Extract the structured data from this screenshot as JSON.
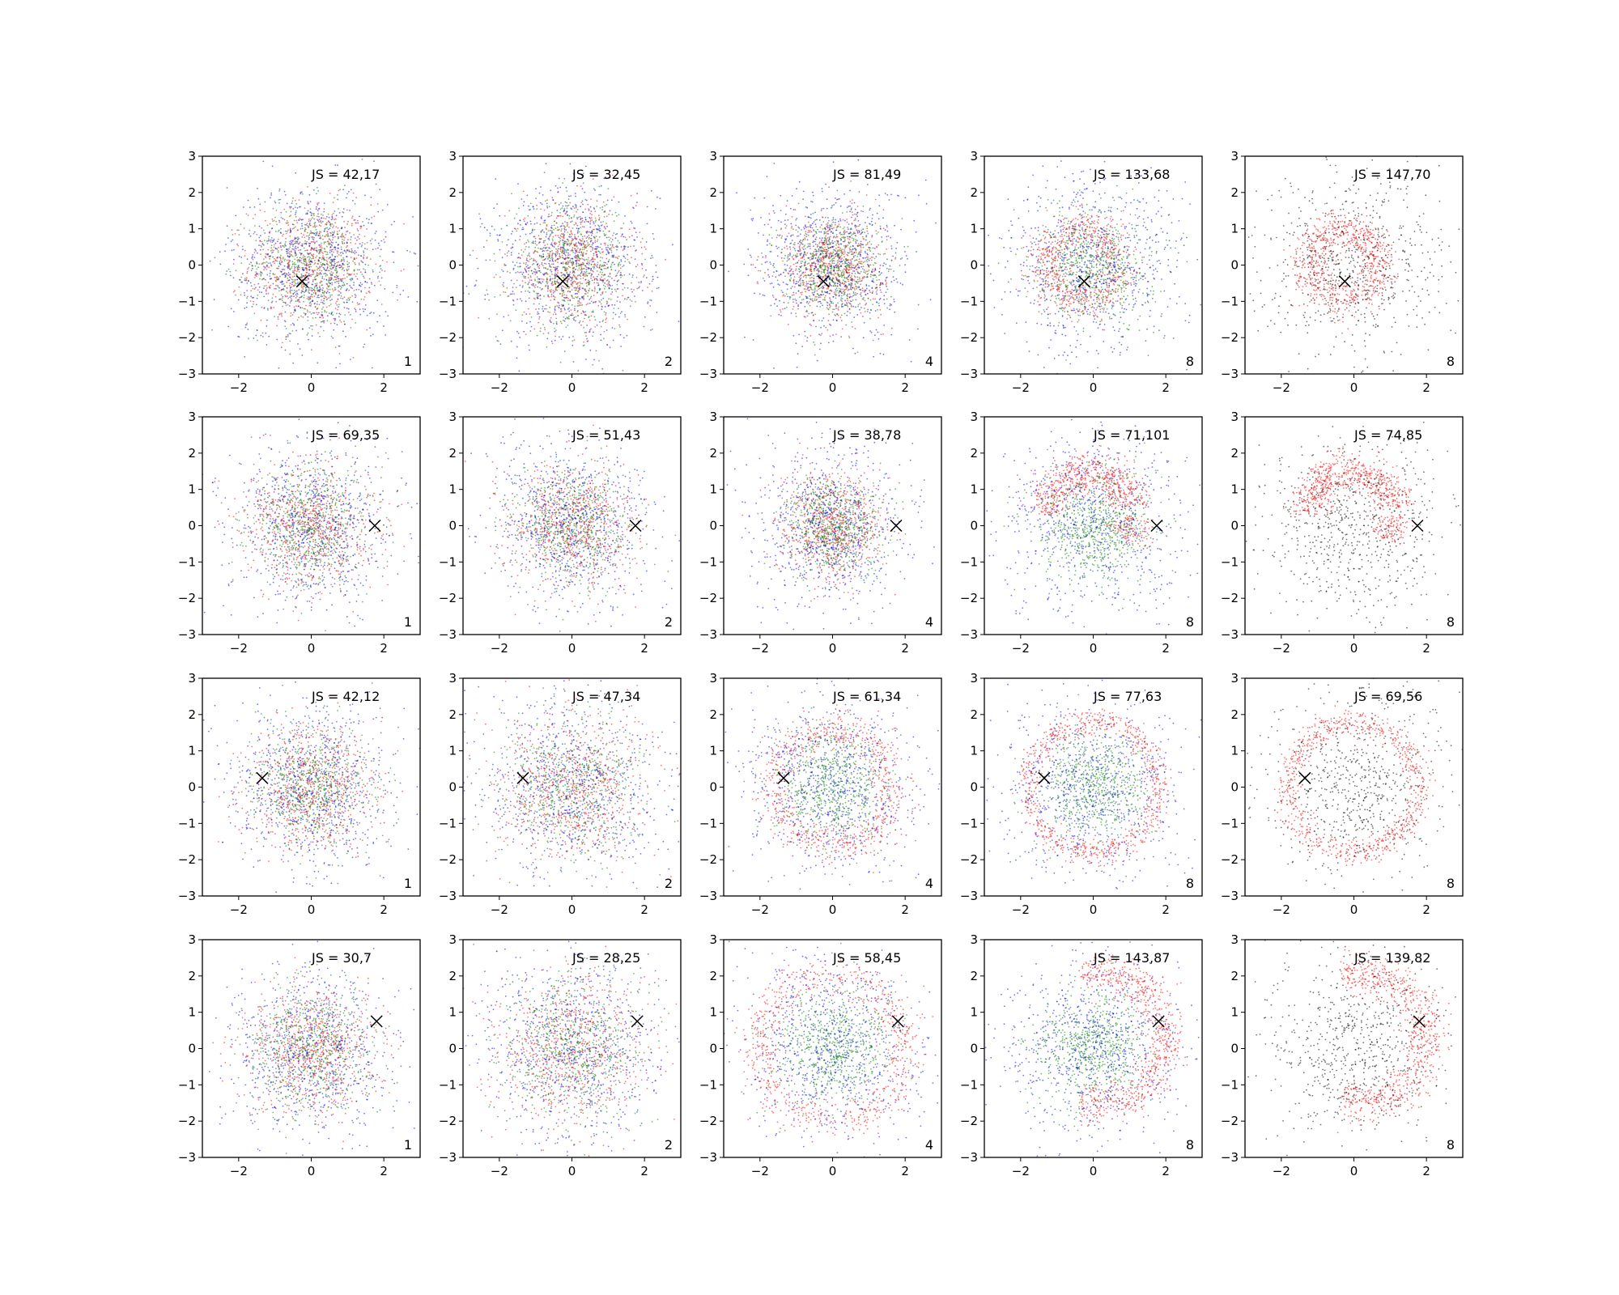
{
  "figure": {
    "rows": 4,
    "cols": 5,
    "colors": {
      "red": "#ff0000",
      "green": "#008000",
      "blue": "#0000ff",
      "black": "#000000",
      "marker": "#000000"
    }
  },
  "chart_data": [
    {
      "type": "scatter",
      "row": 0,
      "col": 0,
      "xlim": [
        -3,
        3
      ],
      "ylim": [
        -3,
        3
      ],
      "xticks": [
        -2,
        0,
        2
      ],
      "yticks": [
        -3,
        -2,
        -1,
        0,
        1,
        2,
        3
      ],
      "annotation": "JS = 42,17",
      "corner_label": "1",
      "marker": {
        "x": -0.25,
        "y": -0.45,
        "symbol": "x"
      },
      "distribution": "mixed-gaussian",
      "series_colors": [
        "red",
        "green",
        "blue"
      ]
    },
    {
      "type": "scatter",
      "row": 0,
      "col": 1,
      "xlim": [
        -3,
        3
      ],
      "ylim": [
        -3,
        3
      ],
      "xticks": [
        -2,
        0,
        2
      ],
      "yticks": [
        -3,
        -2,
        -1,
        0,
        1,
        2,
        3
      ],
      "annotation": "JS = 32,45",
      "corner_label": "2",
      "marker": {
        "x": -0.25,
        "y": -0.45,
        "symbol": "x"
      },
      "distribution": "mixed-gaussian",
      "series_colors": [
        "red",
        "green",
        "blue"
      ]
    },
    {
      "type": "scatter",
      "row": 0,
      "col": 2,
      "xlim": [
        -3,
        3
      ],
      "ylim": [
        -3,
        3
      ],
      "xticks": [
        -2,
        0,
        2
      ],
      "yticks": [
        -3,
        -2,
        -1,
        0,
        1,
        2,
        3
      ],
      "annotation": "JS = 81,49",
      "corner_label": "4",
      "marker": {
        "x": -0.25,
        "y": -0.45,
        "symbol": "x"
      },
      "distribution": "dense-core",
      "series_colors": [
        "red",
        "green",
        "blue"
      ]
    },
    {
      "type": "scatter",
      "row": 0,
      "col": 3,
      "xlim": [
        -3,
        3
      ],
      "ylim": [
        -3,
        3
      ],
      "xticks": [
        -2,
        0,
        2
      ],
      "yticks": [
        -3,
        -2,
        -1,
        0,
        1,
        2,
        3
      ],
      "annotation": "JS = 133,68",
      "corner_label": "8",
      "marker": {
        "x": -0.25,
        "y": -0.45,
        "symbol": "x"
      },
      "distribution": "ring-offset",
      "ring": {
        "cx": -0.3,
        "cy": 0,
        "r": 1.0
      },
      "series_colors": [
        "red",
        "green",
        "blue"
      ]
    },
    {
      "type": "scatter",
      "row": 0,
      "col": 4,
      "xlim": [
        -3,
        3
      ],
      "ylim": [
        -3,
        3
      ],
      "xticks": [
        -2,
        0,
        2
      ],
      "yticks": [
        -3,
        -2,
        -1,
        0,
        1,
        2,
        3
      ],
      "annotation": "JS = 147,70",
      "corner_label": "8",
      "marker": {
        "x": -0.25,
        "y": -0.45,
        "symbol": "x"
      },
      "distribution": "ring-offset",
      "ring": {
        "cx": -0.3,
        "cy": 0,
        "r": 1.0
      },
      "series_colors": [
        "red",
        "black"
      ]
    },
    {
      "type": "scatter",
      "row": 1,
      "col": 0,
      "xlim": [
        -3,
        3
      ],
      "ylim": [
        -3,
        3
      ],
      "xticks": [
        -2,
        0,
        2
      ],
      "yticks": [
        -3,
        -2,
        -1,
        0,
        1,
        2,
        3
      ],
      "annotation": "JS = 69,35",
      "corner_label": "1",
      "marker": {
        "x": 1.75,
        "y": 0.0,
        "symbol": "x"
      },
      "distribution": "mixed-gaussian",
      "series_colors": [
        "red",
        "green",
        "blue"
      ]
    },
    {
      "type": "scatter",
      "row": 1,
      "col": 1,
      "xlim": [
        -3,
        3
      ],
      "ylim": [
        -3,
        3
      ],
      "xticks": [
        -2,
        0,
        2
      ],
      "yticks": [
        -3,
        -2,
        -1,
        0,
        1,
        2,
        3
      ],
      "annotation": "JS = 51,43",
      "corner_label": "2",
      "marker": {
        "x": 1.75,
        "y": 0.0,
        "symbol": "x"
      },
      "distribution": "mixed-gaussian",
      "series_colors": [
        "red",
        "green",
        "blue"
      ]
    },
    {
      "type": "scatter",
      "row": 1,
      "col": 2,
      "xlim": [
        -3,
        3
      ],
      "ylim": [
        -3,
        3
      ],
      "xticks": [
        -2,
        0,
        2
      ],
      "yticks": [
        -3,
        -2,
        -1,
        0,
        1,
        2,
        3
      ],
      "annotation": "JS = 38,78",
      "corner_label": "4",
      "marker": {
        "x": 1.75,
        "y": 0.0,
        "symbol": "x"
      },
      "distribution": "dense-core",
      "series_colors": [
        "red",
        "green",
        "blue"
      ]
    },
    {
      "type": "scatter",
      "row": 1,
      "col": 3,
      "xlim": [
        -3,
        3
      ],
      "ylim": [
        -3,
        3
      ],
      "xticks": [
        -2,
        0,
        2
      ],
      "yticks": [
        -3,
        -2,
        -1,
        0,
        1,
        2,
        3
      ],
      "annotation": "JS = 71,101",
      "corner_label": "8",
      "marker": {
        "x": 1.75,
        "y": 0.0,
        "symbol": "x"
      },
      "distribution": "arc-top",
      "ring": {
        "cx": -0.1,
        "cy": 0.3,
        "r": 1.2
      },
      "series_colors": [
        "red",
        "green",
        "blue"
      ]
    },
    {
      "type": "scatter",
      "row": 1,
      "col": 4,
      "xlim": [
        -3,
        3
      ],
      "ylim": [
        -3,
        3
      ],
      "xticks": [
        -2,
        0,
        2
      ],
      "yticks": [
        -3,
        -2,
        -1,
        0,
        1,
        2,
        3
      ],
      "annotation": "JS = 74,85",
      "corner_label": "8",
      "marker": {
        "x": 1.75,
        "y": 0.0,
        "symbol": "x"
      },
      "distribution": "arc-top",
      "ring": {
        "cx": -0.1,
        "cy": 0.3,
        "r": 1.2
      },
      "series_colors": [
        "red",
        "black"
      ]
    },
    {
      "type": "scatter",
      "row": 2,
      "col": 0,
      "xlim": [
        -3,
        3
      ],
      "ylim": [
        -3,
        3
      ],
      "xticks": [
        -2,
        0,
        2
      ],
      "yticks": [
        -3,
        -2,
        -1,
        0,
        1,
        2,
        3
      ],
      "annotation": "JS = 42,12",
      "corner_label": "1",
      "marker": {
        "x": -1.35,
        "y": 0.25,
        "symbol": "x"
      },
      "distribution": "mixed-gaussian",
      "series_colors": [
        "red",
        "green",
        "blue"
      ]
    },
    {
      "type": "scatter",
      "row": 2,
      "col": 1,
      "xlim": [
        -3,
        3
      ],
      "ylim": [
        -3,
        3
      ],
      "xticks": [
        -2,
        0,
        2
      ],
      "yticks": [
        -3,
        -2,
        -1,
        0,
        1,
        2,
        3
      ],
      "annotation": "JS = 47,34",
      "corner_label": "2",
      "marker": {
        "x": -1.35,
        "y": 0.25,
        "symbol": "x"
      },
      "distribution": "wide",
      "series_colors": [
        "red",
        "green",
        "blue"
      ]
    },
    {
      "type": "scatter",
      "row": 2,
      "col": 2,
      "xlim": [
        -3,
        3
      ],
      "ylim": [
        -3,
        3
      ],
      "xticks": [
        -2,
        0,
        2
      ],
      "yticks": [
        -3,
        -2,
        -1,
        0,
        1,
        2,
        3
      ],
      "annotation": "JS = 61,34",
      "corner_label": "4",
      "marker": {
        "x": -1.35,
        "y": 0.25,
        "symbol": "x"
      },
      "distribution": "ring-wide",
      "ring": {
        "cx": 0,
        "cy": 0,
        "r": 1.6
      },
      "series_colors": [
        "red",
        "green",
        "blue"
      ]
    },
    {
      "type": "scatter",
      "row": 2,
      "col": 3,
      "xlim": [
        -3,
        3
      ],
      "ylim": [
        -3,
        3
      ],
      "xticks": [
        -2,
        0,
        2
      ],
      "yticks": [
        -3,
        -2,
        -1,
        0,
        1,
        2,
        3
      ],
      "annotation": "JS = 77,63",
      "corner_label": "8",
      "marker": {
        "x": -1.35,
        "y": 0.25,
        "symbol": "x"
      },
      "distribution": "ring-thin",
      "ring": {
        "cx": 0,
        "cy": 0,
        "r": 1.8
      },
      "series_colors": [
        "red",
        "green",
        "blue"
      ]
    },
    {
      "type": "scatter",
      "row": 2,
      "col": 4,
      "xlim": [
        -3,
        3
      ],
      "ylim": [
        -3,
        3
      ],
      "xticks": [
        -2,
        0,
        2
      ],
      "yticks": [
        -3,
        -2,
        -1,
        0,
        1,
        2,
        3
      ],
      "annotation": "JS = 69,56",
      "corner_label": "8",
      "marker": {
        "x": -1.35,
        "y": 0.25,
        "symbol": "x"
      },
      "distribution": "ring-thin",
      "ring": {
        "cx": 0,
        "cy": 0,
        "r": 1.8
      },
      "series_colors": [
        "red",
        "black"
      ]
    },
    {
      "type": "scatter",
      "row": 3,
      "col": 0,
      "xlim": [
        -3,
        3
      ],
      "ylim": [
        -3,
        3
      ],
      "xticks": [
        -2,
        0,
        2
      ],
      "yticks": [
        -3,
        -2,
        -1,
        0,
        1,
        2,
        3
      ],
      "annotation": "JS = 30,7",
      "corner_label": "1",
      "marker": {
        "x": 1.8,
        "y": 0.75,
        "symbol": "x"
      },
      "distribution": "mixed-gaussian",
      "series_colors": [
        "red",
        "green",
        "blue"
      ]
    },
    {
      "type": "scatter",
      "row": 3,
      "col": 1,
      "xlim": [
        -3,
        3
      ],
      "ylim": [
        -3,
        3
      ],
      "xticks": [
        -2,
        0,
        2
      ],
      "yticks": [
        -3,
        -2,
        -1,
        0,
        1,
        2,
        3
      ],
      "annotation": "JS = 28,25",
      "corner_label": "2",
      "marker": {
        "x": 1.8,
        "y": 0.75,
        "symbol": "x"
      },
      "distribution": "wide",
      "series_colors": [
        "red",
        "green",
        "blue"
      ]
    },
    {
      "type": "scatter",
      "row": 3,
      "col": 2,
      "xlim": [
        -3,
        3
      ],
      "ylim": [
        -3,
        3
      ],
      "xticks": [
        -2,
        0,
        2
      ],
      "yticks": [
        -3,
        -2,
        -1,
        0,
        1,
        2,
        3
      ],
      "annotation": "JS = 58,45",
      "corner_label": "4",
      "marker": {
        "x": 1.8,
        "y": 0.75,
        "symbol": "x"
      },
      "distribution": "ring-wide",
      "ring": {
        "cx": 0,
        "cy": 0,
        "r": 2.0
      },
      "series_colors": [
        "red",
        "green",
        "blue"
      ]
    },
    {
      "type": "scatter",
      "row": 3,
      "col": 3,
      "xlim": [
        -3,
        3
      ],
      "ylim": [
        -3,
        3
      ],
      "xticks": [
        -2,
        0,
        2
      ],
      "yticks": [
        -3,
        -2,
        -1,
        0,
        1,
        2,
        3
      ],
      "annotation": "JS = 143,87",
      "corner_label": "8",
      "marker": {
        "x": 1.8,
        "y": 0.75,
        "symbol": "x"
      },
      "distribution": "arc-right",
      "ring": {
        "cx": 0.2,
        "cy": 0.3,
        "r": 1.8
      },
      "series_colors": [
        "red",
        "green",
        "blue"
      ]
    },
    {
      "type": "scatter",
      "row": 3,
      "col": 4,
      "xlim": [
        -3,
        3
      ],
      "ylim": [
        -3,
        3
      ],
      "xticks": [
        -2,
        0,
        2
      ],
      "yticks": [
        -3,
        -2,
        -1,
        0,
        1,
        2,
        3
      ],
      "annotation": "JS = 139,82",
      "corner_label": "8",
      "marker": {
        "x": 1.8,
        "y": 0.75,
        "symbol": "x"
      },
      "distribution": "arc-right",
      "ring": {
        "cx": 0.2,
        "cy": 0.3,
        "r": 1.8
      },
      "series_colors": [
        "red",
        "black"
      ]
    }
  ]
}
